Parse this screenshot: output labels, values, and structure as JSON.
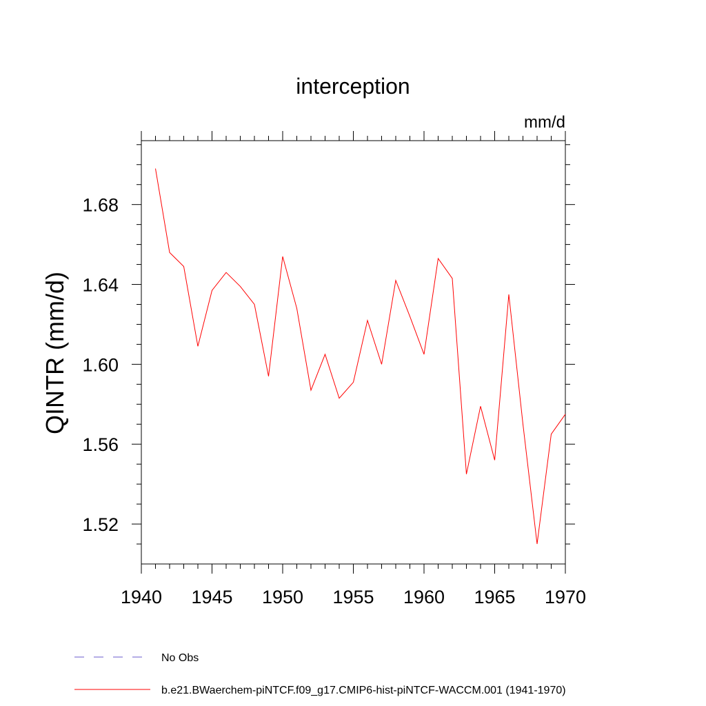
{
  "chart_data": {
    "type": "line",
    "title": "interception",
    "units_label": "mm/d",
    "ylabel": "QINTR  (mm/d)",
    "xlabel": "",
    "xlim": [
      1940,
      1970
    ],
    "ylim": [
      1.5,
      1.712
    ],
    "x_ticks": [
      1940,
      1945,
      1950,
      1955,
      1960,
      1965,
      1970
    ],
    "y_ticks": [
      1.52,
      1.56,
      1.6,
      1.64,
      1.68
    ],
    "y_tick_labels": [
      "1.52",
      "1.56",
      "1.60",
      "1.64",
      "1.68"
    ],
    "x": [
      1941,
      1942,
      1943,
      1944,
      1945,
      1946,
      1947,
      1948,
      1949,
      1950,
      1951,
      1952,
      1953,
      1954,
      1955,
      1956,
      1957,
      1958,
      1959,
      1960,
      1961,
      1962,
      1963,
      1964,
      1965,
      1966,
      1967,
      1968,
      1969,
      1970
    ],
    "series": [
      {
        "name": "b.e21.BWaerchem-piNTCF.f09_g17.CMIP6-hist-piNTCF-WACCM.001 (1941-1970)",
        "color": "#ff0000",
        "values": [
          1.698,
          1.656,
          1.649,
          1.609,
          1.637,
          1.646,
          1.639,
          1.63,
          1.594,
          1.654,
          1.628,
          1.587,
          1.605,
          1.583,
          1.591,
          1.622,
          1.6,
          1.642,
          1.624,
          1.605,
          1.653,
          1.643,
          1.545,
          1.579,
          1.552,
          1.635,
          1.57,
          1.51,
          1.565,
          1.575
        ]
      }
    ],
    "legend": [
      {
        "label": "No Obs",
        "style": "dashed",
        "color": "#6a5acd"
      },
      {
        "label": "b.e21.BWaerchem-piNTCF.f09_g17.CMIP6-hist-piNTCF-WACCM.001 (1941-1970)",
        "style": "solid",
        "color": "#ff0000"
      }
    ],
    "legend_placement": "bottom",
    "grid": false
  }
}
